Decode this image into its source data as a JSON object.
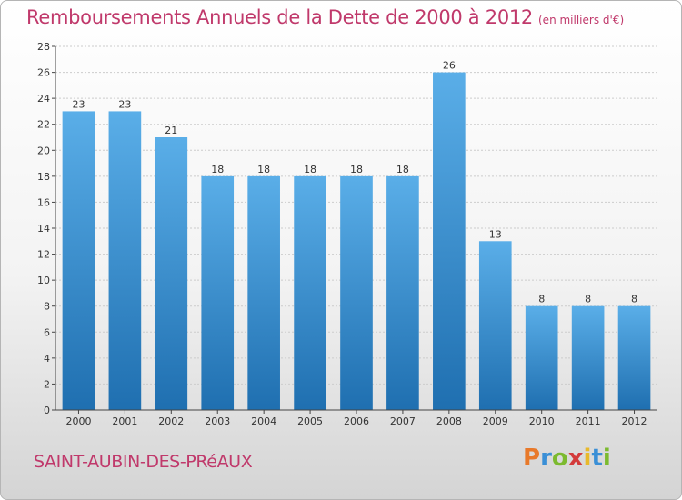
{
  "title": "Remboursements Annuels de la Dette de 2000 à 2012",
  "subtitle": "(en milliers d'€)",
  "commune": "SAINT-AUBIN-DES-PRéAUX",
  "logo": {
    "letters": [
      "P",
      "r",
      "o",
      "x",
      "i",
      "t",
      "i"
    ],
    "colors": [
      "#e8792a",
      "#3a8fd6",
      "#7cba2f",
      "#d33a3a",
      "#e8b92a",
      "#3a8fd6",
      "#7cba2f"
    ]
  },
  "colors": {
    "title": "#c0396b",
    "bar_top": "#5aaee8",
    "bar_bottom": "#1f6fb0",
    "grid": "#cccccc",
    "axis": "#444444"
  },
  "chart_data": {
    "type": "bar",
    "categories": [
      "2000",
      "2001",
      "2002",
      "2003",
      "2004",
      "2005",
      "2006",
      "2007",
      "2008",
      "2009",
      "2010",
      "2011",
      "2012"
    ],
    "values": [
      23,
      23,
      21,
      18,
      18,
      18,
      18,
      18,
      26,
      13,
      8,
      8,
      8
    ],
    "ylim": [
      0,
      28
    ],
    "yticks": [
      0,
      2,
      4,
      6,
      8,
      10,
      12,
      14,
      16,
      18,
      20,
      22,
      24,
      26,
      28
    ],
    "grid": "horizontal dashed"
  }
}
